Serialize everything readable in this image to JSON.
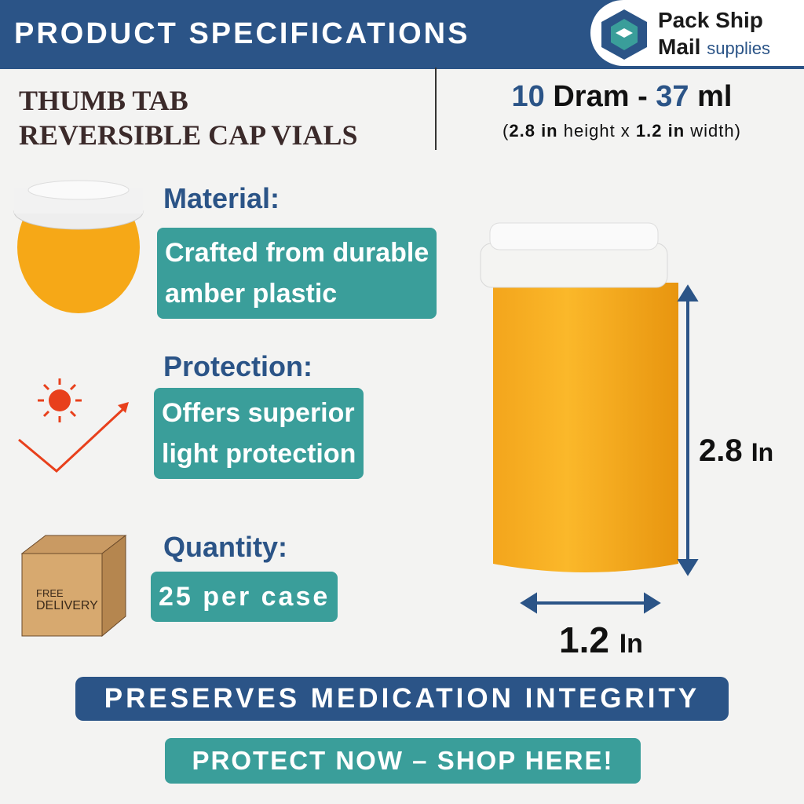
{
  "header": {
    "title": "PRODUCT SPECIFICATIONS",
    "logo": {
      "line1": "Pack Ship",
      "line2": "Mail",
      "line2_small": "supplies"
    }
  },
  "product": {
    "name_lines": [
      "THUMB TAB",
      "REVERSIBLE CAP VIALS"
    ],
    "size_parts": [
      "10",
      " Dram - ",
      "37",
      " ml"
    ],
    "dimension_parts": [
      "(",
      "2.8 in",
      " height x ",
      "1.2 in",
      " width)"
    ]
  },
  "features": [
    {
      "label": "Material:",
      "text_lines": [
        "Crafted from durable",
        "amber plastic"
      ]
    },
    {
      "label": "Protection:",
      "text_lines": [
        "Offers superior",
        "light protection"
      ]
    },
    {
      "label": "Quantity:",
      "text_lines": [
        "25 per case"
      ]
    }
  ],
  "box_icon": {
    "lines": [
      "FREE",
      "DELIVERY"
    ]
  },
  "measurements": {
    "height": "2.8",
    "height_unit": "In",
    "width": "1.2",
    "width_unit": "In"
  },
  "banner": "PRESERVES MEDICATION INTEGRITY",
  "button": "PROTECT NOW – SHOP HERE!"
}
